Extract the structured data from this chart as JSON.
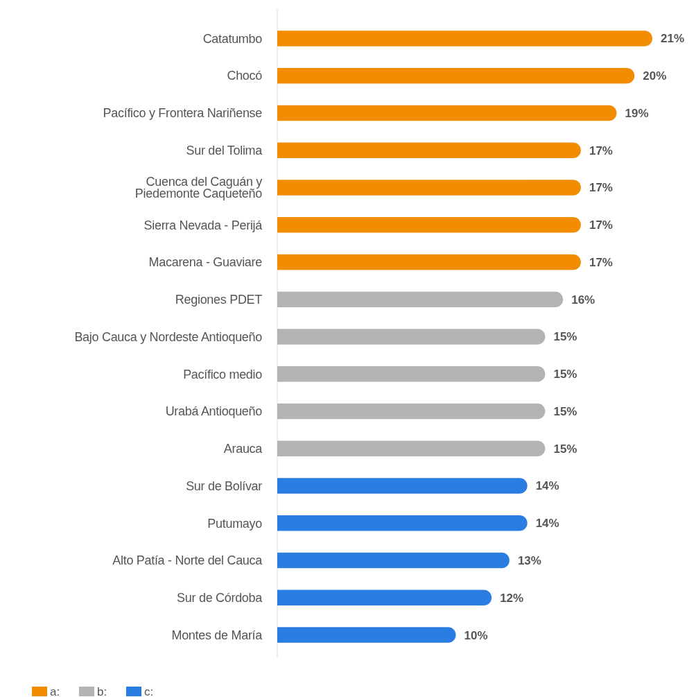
{
  "chart_data": {
    "type": "bar",
    "orientation": "horizontal",
    "legend": "bottom left",
    "categories": [
      "Catatumbo",
      "Chocó",
      "Pacífico y Frontera Nariñense",
      "Sur del Tolima",
      "Cuenca del Caguán y\nPiedemonte Caqueteño",
      "Sierra Nevada - Perijá",
      "Macarena - Guaviare",
      "Regiones PDET",
      "Bajo Cauca y Nordeste Antioqueño",
      "Pacífico medio",
      "Urabá Antioqueño",
      "Arauca",
      "Sur de Bolívar",
      "Putumayo",
      "Alto Patía - Norte del Cauca",
      "Sur de Córdoba",
      "Montes de María"
    ],
    "series": [
      {
        "name": "a:",
        "color": "#f28c00",
        "values": [
          21,
          20,
          19,
          17,
          17,
          17,
          17,
          null,
          null,
          null,
          null,
          null,
          null,
          null,
          null,
          null,
          null
        ],
        "value_labels": [
          "21%",
          "20%",
          "19%",
          "17%",
          "17%",
          "17%",
          "17%",
          null,
          null,
          null,
          null,
          null,
          null,
          null,
          null,
          null,
          null
        ]
      },
      {
        "name": "b:",
        "color": "#b3b3b3",
        "values": [
          null,
          null,
          null,
          null,
          null,
          null,
          null,
          16,
          15,
          15,
          15,
          15,
          null,
          null,
          null,
          null,
          null
        ],
        "value_labels": [
          null,
          null,
          null,
          null,
          null,
          null,
          null,
          "16%",
          "15%",
          "15%",
          "15%",
          "15%",
          null,
          null,
          null,
          null,
          null
        ]
      },
      {
        "name": "c:",
        "color": "#2a7de1",
        "values": [
          null,
          null,
          null,
          null,
          null,
          null,
          null,
          null,
          null,
          null,
          null,
          null,
          14,
          14,
          13,
          12,
          10
        ],
        "value_labels": [
          null,
          null,
          null,
          null,
          null,
          null,
          null,
          null,
          null,
          null,
          null,
          null,
          "14%",
          "14%",
          "13%",
          "12%",
          "10%"
        ]
      }
    ]
  }
}
